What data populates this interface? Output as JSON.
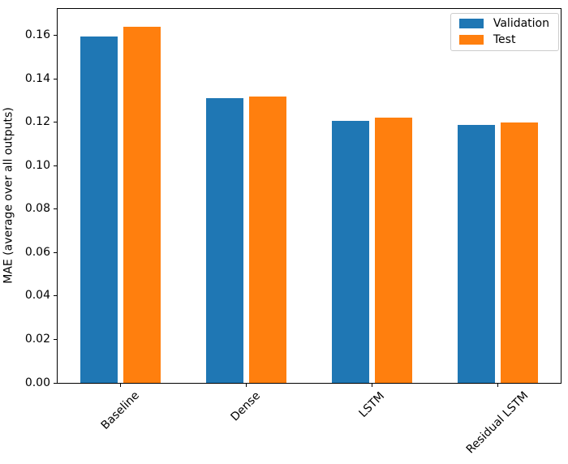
{
  "chart_data": {
    "type": "bar",
    "title": "",
    "categories": [
      "Baseline",
      "Dense",
      "LSTM",
      "Residual LSTM"
    ],
    "series": [
      {
        "name": "Validation",
        "color": "#1f77b4",
        "values": [
          0.1595,
          0.1312,
          0.1205,
          0.1187
        ]
      },
      {
        "name": "Test",
        "color": "#ff7f0e",
        "values": [
          0.1641,
          0.1318,
          0.1221,
          0.1199
        ]
      }
    ],
    "xlabel": "",
    "ylabel": "MAE (average over all outputs)",
    "ylim": [
      0,
      0.1722
    ],
    "yticks": [
      0,
      0.02,
      0.04,
      0.06,
      0.08,
      0.1,
      0.12,
      0.14,
      0.16
    ],
    "ytick_labels": [
      "0.00",
      "0.02",
      "0.04",
      "0.06",
      "0.08",
      "0.10",
      "0.12",
      "0.14",
      "0.16"
    ],
    "xtick_rotation_deg": 45,
    "grid": false,
    "legend": {
      "position": "upper right",
      "entries": [
        "Validation",
        "Test"
      ]
    },
    "colors": {
      "axes_edge": "#000000",
      "text": "#000000",
      "legend_border": "#cccccc",
      "background": "#ffffff"
    }
  }
}
